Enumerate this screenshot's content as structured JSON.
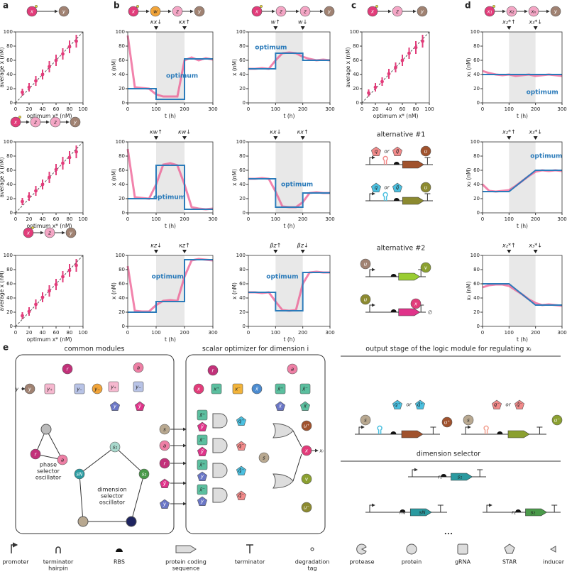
{
  "panels": [
    "a",
    "b",
    "c",
    "d",
    "e"
  ],
  "chart_data": [
    {
      "type": "scatter",
      "xlabel": "optimum x* (nM)",
      "ylabel": "average x (nM)",
      "xlim": [
        0,
        100
      ],
      "ylim": [
        0,
        100
      ],
      "xticks": [
        0,
        20,
        40,
        60,
        80,
        100
      ],
      "yticks": [
        0,
        20,
        40,
        60,
        80,
        100
      ],
      "x": [
        10,
        20,
        30,
        40,
        50,
        60,
        70,
        80,
        90
      ],
      "values": [
        15,
        22,
        31,
        40,
        51,
        60,
        69,
        79,
        87
      ],
      "errors": [
        5,
        6,
        7,
        7,
        8,
        8,
        8,
        9,
        9
      ],
      "color": "#e23c7a"
    },
    {
      "type": "line",
      "xlabel": "t (h)",
      "ylabel": "x (nM)",
      "xlim": [
        0,
        300
      ],
      "ylim": [
        0,
        100
      ],
      "xticks": [
        0,
        100,
        200,
        300
      ],
      "yticks": [
        0,
        20,
        40,
        60,
        80,
        100
      ],
      "shade": [
        100,
        200
      ],
      "annotations": [
        {
          "text": "κx↓",
          "x": 100
        },
        {
          "text": "κx↑",
          "x": 200
        }
      ],
      "series": [
        {
          "name": "optimum",
          "color": "#2b7bba",
          "x": [
            0,
            100,
            100,
            200,
            200,
            300
          ],
          "values": [
            20,
            20,
            5,
            5,
            62,
            62
          ]
        },
        {
          "color": "#ee5a90",
          "x": [
            0,
            25,
            50,
            75,
            100,
            125,
            150,
            175,
            200,
            225,
            250,
            275,
            300
          ],
          "values": [
            95,
            22,
            21,
            20,
            12,
            9,
            9,
            9,
            60,
            64,
            60,
            63,
            61
          ]
        }
      ]
    },
    {
      "type": "line",
      "xlabel": "t (h)",
      "ylabel": "x (nM)",
      "xlim": [
        0,
        300
      ],
      "ylim": [
        0,
        100
      ],
      "xticks": [
        0,
        100,
        200,
        300
      ],
      "yticks": [
        0,
        20,
        40,
        60,
        80,
        100
      ],
      "shade": [
        100,
        200
      ],
      "annotations": [
        {
          "text": "w↑",
          "x": 100
        },
        {
          "text": "w↓",
          "x": 200
        }
      ],
      "series": [
        {
          "name": "optimum",
          "color": "#2b7bba",
          "x": [
            0,
            100,
            100,
            200,
            200,
            300
          ],
          "values": [
            48,
            48,
            70,
            70,
            60,
            60
          ]
        },
        {
          "color": "#ee5a90",
          "x": [
            0,
            25,
            50,
            75,
            100,
            125,
            150,
            175,
            200,
            225,
            250,
            275,
            300
          ],
          "values": [
            48,
            48,
            49,
            48,
            60,
            70,
            71,
            70,
            65,
            62,
            60,
            61,
            60
          ]
        }
      ]
    },
    {
      "type": "scatter",
      "xlabel": "optimum x* (nM)",
      "ylabel": "average x (nM)",
      "xlim": [
        0,
        100
      ],
      "ylim": [
        0,
        100
      ],
      "xticks": [
        0,
        20,
        40,
        60,
        80,
        100
      ],
      "yticks": [
        0,
        20,
        40,
        60,
        80,
        100
      ],
      "x": [
        10,
        20,
        30,
        40,
        50,
        60,
        70,
        80,
        90
      ],
      "values": [
        14,
        22,
        30,
        41,
        50,
        60,
        70,
        78,
        87
      ],
      "errors": [
        5,
        6,
        6,
        7,
        7,
        8,
        8,
        9,
        9
      ],
      "color": "#e23c7a"
    },
    {
      "type": "line",
      "xlabel": "t (h)",
      "ylabel": "x₁ (nM)",
      "xlim": [
        0,
        300
      ],
      "ylim": [
        0,
        100
      ],
      "xticks": [
        0,
        100,
        200,
        300
      ],
      "yticks": [
        0,
        20,
        40,
        60,
        80,
        100
      ],
      "shade": [
        100,
        200
      ],
      "annotations": [
        {
          "text": "x₂*↑",
          "x": 100
        },
        {
          "text": "x₃*↓",
          "x": 200
        }
      ],
      "series": [
        {
          "name": "optimum",
          "color": "#2b7bba",
          "x": [
            0,
            100,
            200,
            300
          ],
          "values": [
            40,
            40,
            40,
            40
          ]
        },
        {
          "color": "#ee5a90",
          "x": [
            0,
            25,
            50,
            75,
            100,
            125,
            150,
            175,
            200,
            225,
            250,
            275,
            300
          ],
          "values": [
            45,
            42,
            40,
            39,
            40,
            38,
            39,
            40,
            38,
            39,
            40,
            39,
            38
          ]
        }
      ]
    },
    {
      "type": "scatter",
      "xlabel": "optimum x* (nM)",
      "ylabel": "average x (nM)",
      "xlim": [
        0,
        100
      ],
      "ylim": [
        0,
        100
      ],
      "xticks": [
        0,
        20,
        40,
        60,
        80,
        100
      ],
      "yticks": [
        0,
        20,
        40,
        60,
        80,
        100
      ],
      "x": [
        10,
        20,
        30,
        40,
        50,
        60,
        70,
        80,
        90
      ],
      "values": [
        16,
        23,
        31,
        40,
        50,
        61,
        70,
        78,
        86
      ],
      "errors": [
        5,
        6,
        7,
        7,
        8,
        8,
        9,
        9,
        9
      ],
      "color": "#e23c7a"
    },
    {
      "type": "line",
      "xlabel": "t (h)",
      "ylabel": "x (nM)",
      "xlim": [
        0,
        300
      ],
      "ylim": [
        0,
        100
      ],
      "xticks": [
        0,
        100,
        200,
        300
      ],
      "yticks": [
        0,
        20,
        40,
        60,
        80,
        100
      ],
      "shade": [
        100,
        200
      ],
      "annotations": [
        {
          "text": "κw↑",
          "x": 100
        },
        {
          "text": "κw↓",
          "x": 200
        }
      ],
      "series": [
        {
          "name": "optimum",
          "color": "#2b7bba",
          "x": [
            0,
            100,
            100,
            200,
            200,
            300
          ],
          "values": [
            20,
            20,
            67,
            67,
            5,
            5
          ]
        },
        {
          "color": "#ee5a90",
          "x": [
            0,
            25,
            50,
            75,
            100,
            125,
            150,
            175,
            200,
            225,
            250,
            275,
            300
          ],
          "values": [
            90,
            22,
            21,
            20,
            40,
            68,
            70,
            67,
            40,
            8,
            6,
            5,
            6
          ]
        }
      ]
    },
    {
      "type": "line",
      "xlabel": "t (h)",
      "ylabel": "x (nM)",
      "xlim": [
        0,
        300
      ],
      "ylim": [
        0,
        100
      ],
      "xticks": [
        0,
        100,
        200,
        300
      ],
      "yticks": [
        0,
        20,
        40,
        60,
        80,
        100
      ],
      "shade": [
        100,
        200
      ],
      "annotations": [
        {
          "text": "κx↓",
          "x": 100
        },
        {
          "text": "κx↑",
          "x": 200
        }
      ],
      "series": [
        {
          "name": "optimum",
          "color": "#2b7bba",
          "x": [
            0,
            100,
            100,
            200,
            200,
            300
          ],
          "values": [
            48,
            48,
            8,
            8,
            28,
            28
          ]
        },
        {
          "color": "#ee5a90",
          "x": [
            0,
            25,
            50,
            75,
            100,
            125,
            150,
            175,
            200,
            225,
            250,
            275,
            300
          ],
          "values": [
            48,
            48,
            49,
            48,
            30,
            9,
            8,
            8,
            15,
            28,
            29,
            28,
            28
          ]
        }
      ]
    },
    {
      "type": "line",
      "xlabel": "t (h)",
      "ylabel": "x₂ (nM)",
      "xlim": [
        0,
        300
      ],
      "ylim": [
        0,
        100
      ],
      "xticks": [
        0,
        100,
        200,
        300
      ],
      "yticks": [
        0,
        20,
        40,
        60,
        80,
        100
      ],
      "shade": [
        100,
        200
      ],
      "annotations": [
        {
          "text": "x₂*↑",
          "x": 100
        },
        {
          "text": "x₃*↓",
          "x": 200
        }
      ],
      "series": [
        {
          "name": "optimum",
          "color": "#2b7bba",
          "x": [
            0,
            100,
            200,
            300
          ],
          "values": [
            30,
            30,
            60,
            60
          ]
        },
        {
          "color": "#ee5a90",
          "x": [
            0,
            25,
            50,
            75,
            100,
            125,
            150,
            175,
            200,
            225,
            250,
            275,
            300
          ],
          "values": [
            40,
            31,
            30,
            31,
            32,
            38,
            45,
            52,
            58,
            60,
            59,
            60,
            59
          ]
        }
      ]
    },
    {
      "type": "scatter",
      "xlabel": "optimum x* (nM)",
      "ylabel": "average x (nM)",
      "xlim": [
        0,
        100
      ],
      "ylim": [
        0,
        100
      ],
      "xticks": [
        0,
        20,
        40,
        60,
        80,
        100
      ],
      "yticks": [
        0,
        20,
        40,
        60,
        80,
        100
      ],
      "x": [
        10,
        20,
        30,
        40,
        50,
        60,
        70,
        80,
        90
      ],
      "values": [
        15,
        21,
        31,
        41,
        50,
        59,
        70,
        79,
        86
      ],
      "errors": [
        5,
        6,
        7,
        7,
        8,
        8,
        8,
        9,
        9
      ],
      "color": "#e23c7a"
    },
    {
      "type": "line",
      "xlabel": "t (h)",
      "ylabel": "x (nM)",
      "xlim": [
        0,
        300
      ],
      "ylim": [
        0,
        100
      ],
      "xticks": [
        0,
        100,
        200,
        300
      ],
      "yticks": [
        0,
        20,
        40,
        60,
        80,
        100
      ],
      "shade": [
        100,
        200
      ],
      "annotations": [
        {
          "text": "κz↓",
          "x": 100
        },
        {
          "text": "κz↑",
          "x": 200
        }
      ],
      "series": [
        {
          "name": "optimum",
          "color": "#2b7bba",
          "x": [
            0,
            100,
            100,
            200,
            200,
            300
          ],
          "values": [
            20,
            20,
            35,
            35,
            94,
            94
          ]
        },
        {
          "color": "#ee5a90",
          "x": [
            0,
            25,
            50,
            75,
            100,
            125,
            150,
            175,
            200,
            225,
            250,
            275,
            300
          ],
          "values": [
            85,
            22,
            21,
            21,
            30,
            36,
            37,
            36,
            70,
            93,
            95,
            94,
            93
          ]
        }
      ]
    },
    {
      "type": "line",
      "xlabel": "t (h)",
      "ylabel": "x (nM)",
      "xlim": [
        0,
        300
      ],
      "ylim": [
        0,
        100
      ],
      "xticks": [
        0,
        100,
        200,
        300
      ],
      "yticks": [
        0,
        20,
        40,
        60,
        80,
        100
      ],
      "shade": [
        100,
        200
      ],
      "annotations": [
        {
          "text": "βz↑",
          "x": 100
        },
        {
          "text": "βz↓",
          "x": 200
        }
      ],
      "series": [
        {
          "name": "optimum",
          "color": "#2b7bba",
          "x": [
            0,
            100,
            100,
            200,
            200,
            300
          ],
          "values": [
            48,
            48,
            22,
            22,
            76,
            76
          ]
        },
        {
          "color": "#ee5a90",
          "x": [
            0,
            25,
            50,
            75,
            100,
            125,
            150,
            175,
            200,
            225,
            250,
            275,
            300
          ],
          "values": [
            48,
            48,
            47,
            48,
            35,
            23,
            22,
            23,
            60,
            76,
            77,
            76,
            76
          ]
        }
      ]
    },
    {
      "type": "line",
      "xlabel": "t (h)",
      "ylabel": "x₃ (nM)",
      "xlim": [
        0,
        300
      ],
      "ylim": [
        0,
        100
      ],
      "xticks": [
        0,
        100,
        200,
        300
      ],
      "yticks": [
        0,
        20,
        40,
        60,
        80,
        100
      ],
      "shade": [
        100,
        200
      ],
      "annotations": [
        {
          "text": "x₂*↑",
          "x": 100
        },
        {
          "text": "x₃*↓",
          "x": 200
        }
      ],
      "series": [
        {
          "color": "#2b7bba",
          "x": [
            0,
            100,
            200,
            300
          ],
          "values": [
            60,
            60,
            30,
            30
          ]
        },
        {
          "color": "#ee5a90",
          "x": [
            0,
            25,
            50,
            75,
            100,
            125,
            150,
            175,
            200,
            225,
            250,
            275,
            300
          ],
          "values": [
            55,
            58,
            59,
            59,
            57,
            51,
            45,
            38,
            33,
            30,
            31,
            30,
            29
          ]
        }
      ]
    }
  ],
  "motifs": [
    {
      "nodes": [
        "x",
        "y"
      ],
      "colors": [
        "#e23c7a",
        "#a08272"
      ]
    },
    {
      "nodes": [
        "x",
        "w",
        "z",
        "y"
      ],
      "colors": [
        "#e23c7a",
        "#f2a53a",
        "#f4a6c5",
        "#a08272"
      ]
    },
    {
      "nodes": [
        "x",
        "z",
        "z",
        "y"
      ],
      "colors": [
        "#e23c7a",
        "#f4a6c5",
        "#f4a6c5",
        "#a08272"
      ]
    },
    {
      "nodes": [
        "x",
        "z",
        "y"
      ],
      "colors": [
        "#e23c7a",
        "#f4a6c5",
        "#a08272"
      ]
    },
    {
      "nodes": [
        "x₁",
        "x₂",
        "xₙ",
        "y"
      ],
      "colors": [
        "#e23c7a",
        "#f4a6c5",
        "#f4a6c5",
        "#a08272"
      ]
    },
    {
      "nodes": [
        "x",
        "z",
        "z",
        "y"
      ],
      "colors": [
        "#e23c7a",
        "#f4a6c5",
        "#f4a6c5",
        "#a08272"
      ]
    },
    {
      "nodes": [
        "x",
        "z",
        "y"
      ],
      "colors": [
        "#e23c7a",
        "#f4a6c5",
        "#a08272"
      ]
    }
  ],
  "alternatives": [
    {
      "title": "alternative #1",
      "labels": [
        "q",
        "or",
        "q̃",
        "u",
        "q",
        "or",
        "q̃",
        "u"
      ]
    },
    {
      "title": "alternative #2",
      "labels": [
        "u",
        "v",
        "u",
        "x",
        "∅"
      ]
    }
  ],
  "panel_e": {
    "common_modules": "common modules",
    "scalar_optimizer": "scalar optimizer for dimension i",
    "output_stage": "output stage of the logic module for regulating xᵢ",
    "dimension_selector": "dimension selector",
    "phase_oscillator": [
      "phase",
      "selector",
      "oscillator"
    ],
    "dimension_oscillator": [
      "dimension",
      "selector",
      "oscillator"
    ],
    "nodes": [
      "y",
      "y",
      "y₊",
      "y₋",
      "y₋",
      "r",
      "a",
      "y₊",
      "y₋",
      "y",
      "ȳ",
      "r",
      "a",
      "s₁",
      "s₂",
      "sN",
      "s",
      "a",
      "r",
      "ȳ",
      "y",
      "r",
      "x",
      "x⁺",
      "x⁻",
      "x̃",
      "a",
      "x̃⁺",
      "x̃⁻",
      "x̄",
      "x̃",
      "x̃⁺",
      "ȳ",
      "x̃⁻",
      "ȳ",
      "x̃⁺",
      "y",
      "x̃⁻",
      "y",
      "q⁺",
      "q⁻",
      "q̃⁺",
      "q̃⁻",
      "s",
      "u⁺",
      "x",
      "v",
      "u⁻",
      "xᵢ",
      "s",
      "q⁺",
      "or",
      "q̃⁺",
      "u⁺",
      "q⁻",
      "or",
      "q̃⁻",
      "s",
      "u⁻",
      "r₁",
      "s₁",
      "rN",
      "sN",
      "r₂",
      "s₂",
      "•••"
    ]
  },
  "legend": [
    [
      "promoter"
    ],
    [
      "terminator",
      "hairpin"
    ],
    [
      "RBS"
    ],
    [
      "protein coding",
      "sequence"
    ],
    [
      "terminator"
    ],
    [
      "degradation",
      "tag"
    ],
    [
      "protease"
    ],
    [
      "protein"
    ],
    [
      "gRNA"
    ],
    [
      "STAR"
    ],
    [
      "inducer"
    ]
  ]
}
